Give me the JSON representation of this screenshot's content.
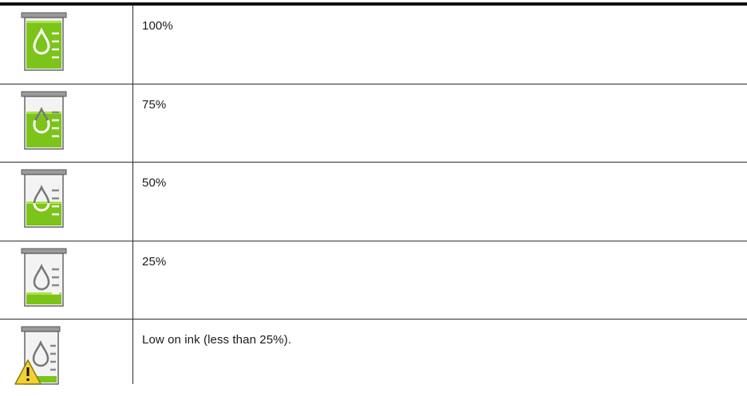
{
  "rows": [
    {
      "level_label": "100%",
      "fill_fraction": 1.0,
      "icon": "ink-cartridge-full-icon",
      "warning": false
    },
    {
      "level_label": "75%",
      "fill_fraction": 0.75,
      "icon": "ink-cartridge-75-icon",
      "warning": false
    },
    {
      "level_label": "50%",
      "fill_fraction": 0.5,
      "icon": "ink-cartridge-50-icon",
      "warning": false
    },
    {
      "level_label": "25%",
      "fill_fraction": 0.25,
      "icon": "ink-cartridge-25-icon",
      "warning": false
    },
    {
      "level_label": "Low on ink (less than 25%).",
      "fill_fraction": 0.1,
      "icon": "ink-cartridge-low-warning-icon",
      "warning": true
    }
  ],
  "colors": {
    "ink_green": "#7cc31a",
    "ink_green_dark": "#4f8a0c",
    "cartridge_gray": "#8a8a8a",
    "warning_yellow": "#f2d230"
  }
}
